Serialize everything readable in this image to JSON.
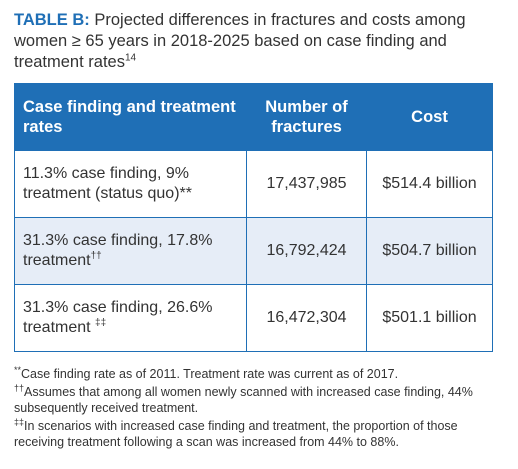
{
  "title": {
    "label": "TABLE B:",
    "text": " Projected differences in fractures and costs among women ≥ 65 years in 2018-2025 based on case finding and treatment rates",
    "superscript": "14"
  },
  "table": {
    "headers": [
      "Case finding and treatment rates",
      "Number of fractures",
      "Cost"
    ],
    "rows": [
      {
        "label": "11.3% case finding, 9% treatment (status quo)**",
        "mark": "",
        "fractures": "17,437,985",
        "cost": "$514.4 billion"
      },
      {
        "label": "31.3% case finding, 17.8% treatment",
        "mark": "††",
        "fractures": "16,792,424",
        "cost": "$504.7 billion"
      },
      {
        "label": "31.3% case finding, 26.6% treatment",
        "mark": "‡‡",
        "fractures": "16,472,304",
        "cost": "$501.1 billion"
      }
    ]
  },
  "footnotes": [
    {
      "mark": "**",
      "text": "Case finding rate as of 2011. Treatment rate was current as of 2017."
    },
    {
      "mark": "††",
      "text": "Assumes that among all women newly scanned with increased case finding, 44% subsequently received treatment."
    },
    {
      "mark": "‡‡",
      "text": "In scenarios with increased case finding and treatment, the proportion of those receiving treatment following a scan was increased from 44% to 88%."
    }
  ],
  "colors": {
    "accent": "#1f6fb6",
    "alt_row": "#e6edf7",
    "text": "#333333"
  }
}
